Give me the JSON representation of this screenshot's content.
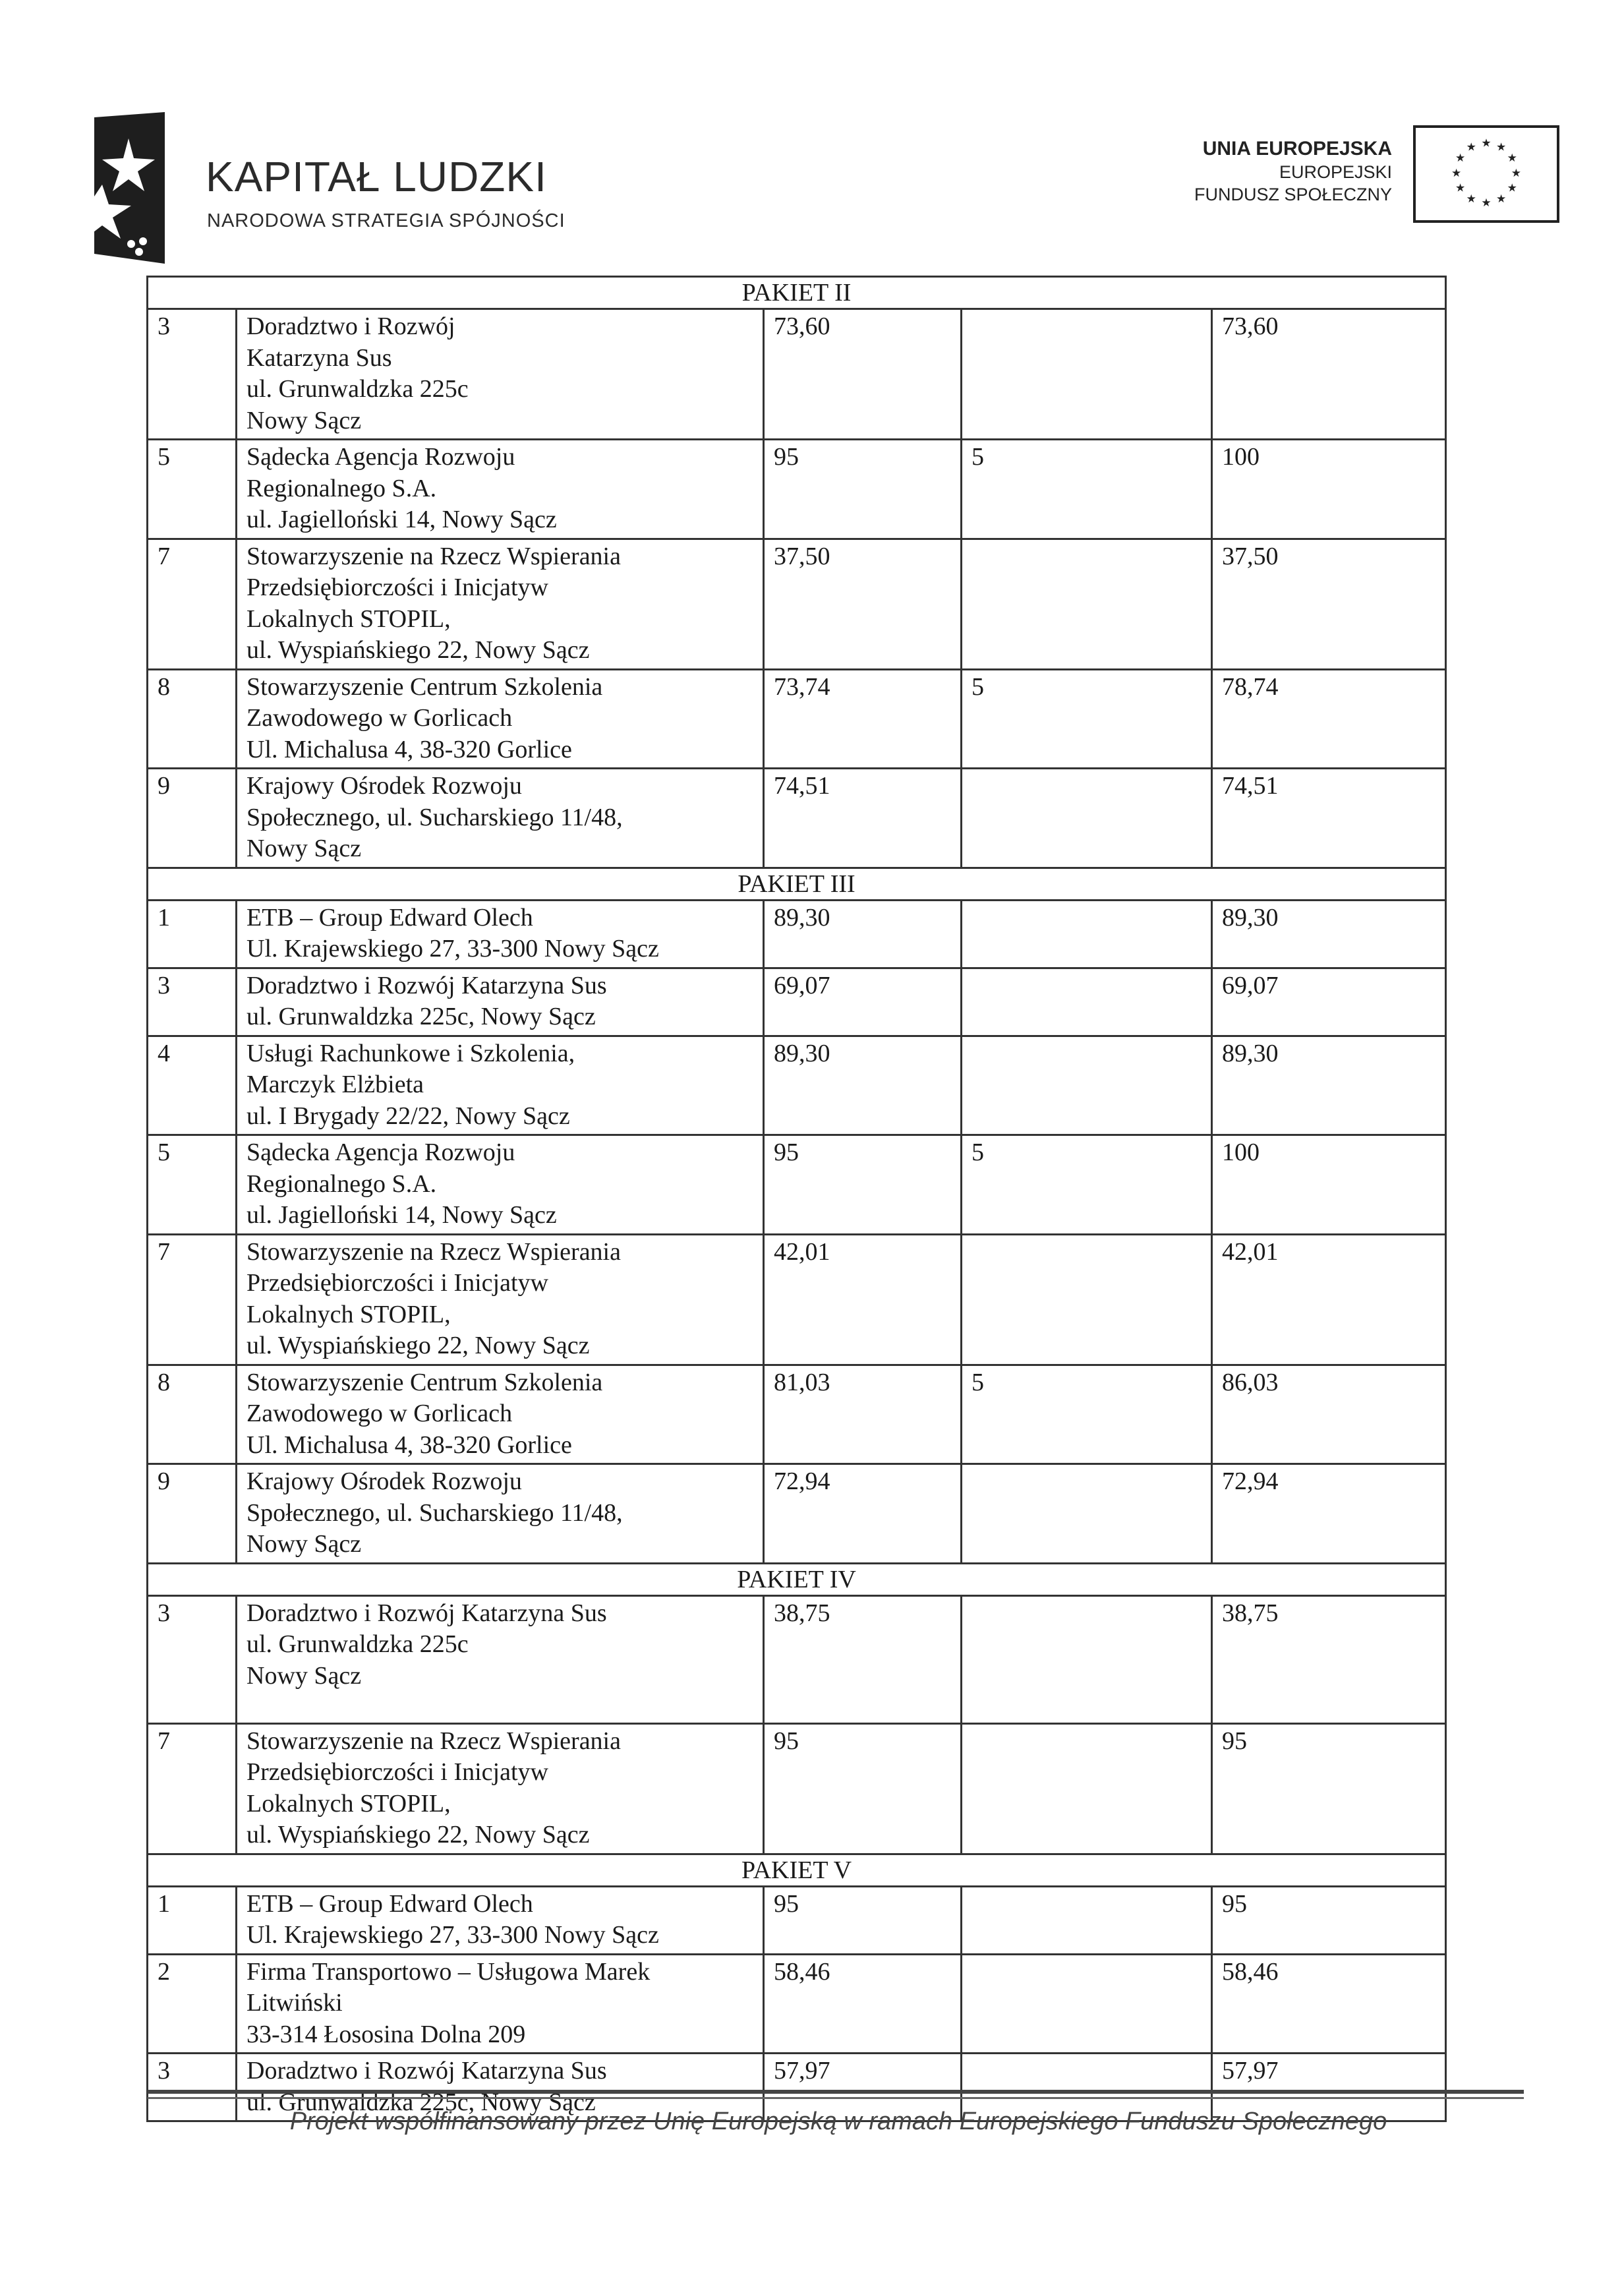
{
  "header": {
    "logo_left": {
      "title": "KAPITAŁ LUDZKI",
      "subtitle": "NARODOWA STRATEGIA SPÓJNOŚCI"
    },
    "logo_right": {
      "line1": "UNIA EUROPEJSKA",
      "line2": "EUROPEJSKI",
      "line3": "FUNDUSZ SPOŁECZNY"
    }
  },
  "table": {
    "sections": [
      {
        "title": "PAKIET II",
        "rows": [
          {
            "no": "3",
            "name": [
              "Doradztwo i Rozwój",
              "Katarzyna Sus",
              "ul. Grunwaldzka 225c",
              "Nowy Sącz"
            ],
            "score1": "73,60",
            "score2": "",
            "total": "73,60"
          },
          {
            "no": "5",
            "name": [
              "Sądecka Agencja Rozwoju",
              "Regionalnego S.A.",
              "ul. Jagielloński 14, Nowy Sącz"
            ],
            "score1": "95",
            "score2": "5",
            "total": "100"
          },
          {
            "no": "7",
            "name": [
              "Stowarzyszenie na Rzecz Wspierania",
              "Przedsiębiorczości i Inicjatyw",
              "Lokalnych STOPIL,",
              "ul. Wyspiańskiego 22, Nowy Sącz"
            ],
            "score1": "37,50",
            "score2": "",
            "total": "37,50"
          },
          {
            "no": "8",
            "name": [
              "Stowarzyszenie Centrum Szkolenia",
              "Zawodowego w Gorlicach",
              "Ul. Michalusa 4, 38-320 Gorlice"
            ],
            "score1": "73,74",
            "score2": "5",
            "total": "78,74"
          },
          {
            "no": "9",
            "name": [
              "Krajowy Ośrodek Rozwoju",
              "Społecznego, ul. Sucharskiego 11/48,",
              "Nowy Sącz"
            ],
            "score1": "74,51",
            "score2": "",
            "total": "74,51"
          }
        ]
      },
      {
        "title": "PAKIET III",
        "rows": [
          {
            "no": "1",
            "name": [
              "ETB – Group  Edward Olech",
              "Ul. Krajewskiego 27, 33-300 Nowy Sącz"
            ],
            "score1": "89,30",
            "score2": "",
            "total": "89,30"
          },
          {
            "no": "3",
            "name": [
              "Doradztwo i Rozwój Katarzyna Sus",
              "ul. Grunwaldzka 225c, Nowy Sącz"
            ],
            "score1": "69,07",
            "score2": "",
            "total": "69,07"
          },
          {
            "no": "4",
            "name": [
              "Usługi Rachunkowe i Szkolenia,",
              "Marczyk Elżbieta",
              "ul. I Brygady 22/22, Nowy Sącz"
            ],
            "score1": "89,30",
            "score2": "",
            "total": "89,30"
          },
          {
            "no": "5",
            "name": [
              "Sądecka Agencja Rozwoju",
              "Regionalnego S.A.",
              "ul. Jagielloński 14, Nowy Sącz"
            ],
            "score1": "95",
            "score2": "5",
            "total": "100"
          },
          {
            "no": "7",
            "name": [
              "Stowarzyszenie na Rzecz Wspierania",
              "Przedsiębiorczości i Inicjatyw",
              "Lokalnych STOPIL,",
              "ul. Wyspiańskiego 22, Nowy Sącz"
            ],
            "score1": "42,01",
            "score2": "",
            "total": "42,01"
          },
          {
            "no": "8",
            "name": [
              "Stowarzyszenie Centrum Szkolenia",
              "Zawodowego w Gorlicach",
              "Ul. Michalusa 4, 38-320 Gorlice"
            ],
            "score1": "81,03",
            "score2": "5",
            "total": "86,03"
          },
          {
            "no": "9",
            "name": [
              "Krajowy Ośrodek Rozwoju",
              "Społecznego, ul. Sucharskiego 11/48,",
              "Nowy Sącz"
            ],
            "score1": "72,94",
            "score2": "",
            "total": "72,94"
          }
        ]
      },
      {
        "title": "PAKIET IV",
        "rows": [
          {
            "no": "3",
            "name": [
              "Doradztwo i Rozwój Katarzyna Sus",
              "ul. Grunwaldzka 225c",
              "Nowy Sącz"
            ],
            "score1": "38,75",
            "score2": "",
            "total": "38,75",
            "tall": true
          },
          {
            "no": "7",
            "name": [
              "Stowarzyszenie na Rzecz Wspierania",
              "Przedsiębiorczości i Inicjatyw",
              "Lokalnych STOPIL,",
              "ul. Wyspiańskiego 22, Nowy Sącz"
            ],
            "score1": "95",
            "score2": "",
            "total": "95"
          }
        ]
      },
      {
        "title": "PAKIET V",
        "rows": [
          {
            "no": "1",
            "name": [
              "ETB – Group  Edward Olech",
              "Ul. Krajewskiego 27, 33-300 Nowy Sącz"
            ],
            "score1": "95",
            "score2": "",
            "total": "95"
          },
          {
            "no": "2",
            "name": [
              "Firma Transportowo – Usługowa Marek",
              "Litwiński",
              "33-314 Łososina Dolna 209"
            ],
            "score1": "58,46",
            "score2": "",
            "total": "58,46"
          },
          {
            "no": "3",
            "name": [
              "Doradztwo i Rozwój Katarzyna Sus",
              "ul. Grunwaldzka 225c, Nowy Sącz"
            ],
            "score1": "57,97",
            "score2": "",
            "total": "57,97"
          }
        ]
      }
    ]
  },
  "footer": {
    "text": "Projekt współfinansowany przez Unię Europejską w ramach Europejskiego Funduszu Społecznego"
  }
}
